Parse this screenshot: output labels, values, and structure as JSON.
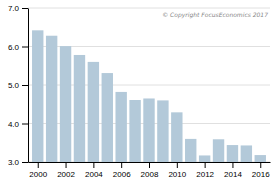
{
  "chart_data": {
    "type": "bar",
    "x": [
      2000,
      2001,
      2002,
      2003,
      2004,
      2005,
      2006,
      2007,
      2008,
      2009,
      2010,
      2011,
      2012,
      2013,
      2014,
      2015,
      2016
    ],
    "values": [
      6.42,
      6.28,
      6.01,
      5.78,
      5.6,
      5.31,
      4.82,
      4.61,
      4.65,
      4.6,
      4.29,
      3.6,
      3.17,
      3.59,
      3.44,
      3.43,
      3.18
    ],
    "color": "#b3c9d9",
    "xlim": [
      1999.3,
      2016.7
    ],
    "xticks": [
      2000,
      2002,
      2004,
      2006,
      2008,
      2010,
      2012,
      2014,
      2016
    ],
    "ylim": [
      3.0,
      7.0
    ],
    "yticks": [
      {
        "value": 3.0,
        "label": "3.0"
      },
      {
        "value": 4.0,
        "label": "4.0"
      },
      {
        "value": 5.0,
        "label": "5.0"
      },
      {
        "value": 6.0,
        "label": "6.0"
      },
      {
        "value": 7.0,
        "label": "7.0"
      }
    ],
    "grid": true,
    "annotation": "© Copyright FocusEconomics 2017"
  }
}
